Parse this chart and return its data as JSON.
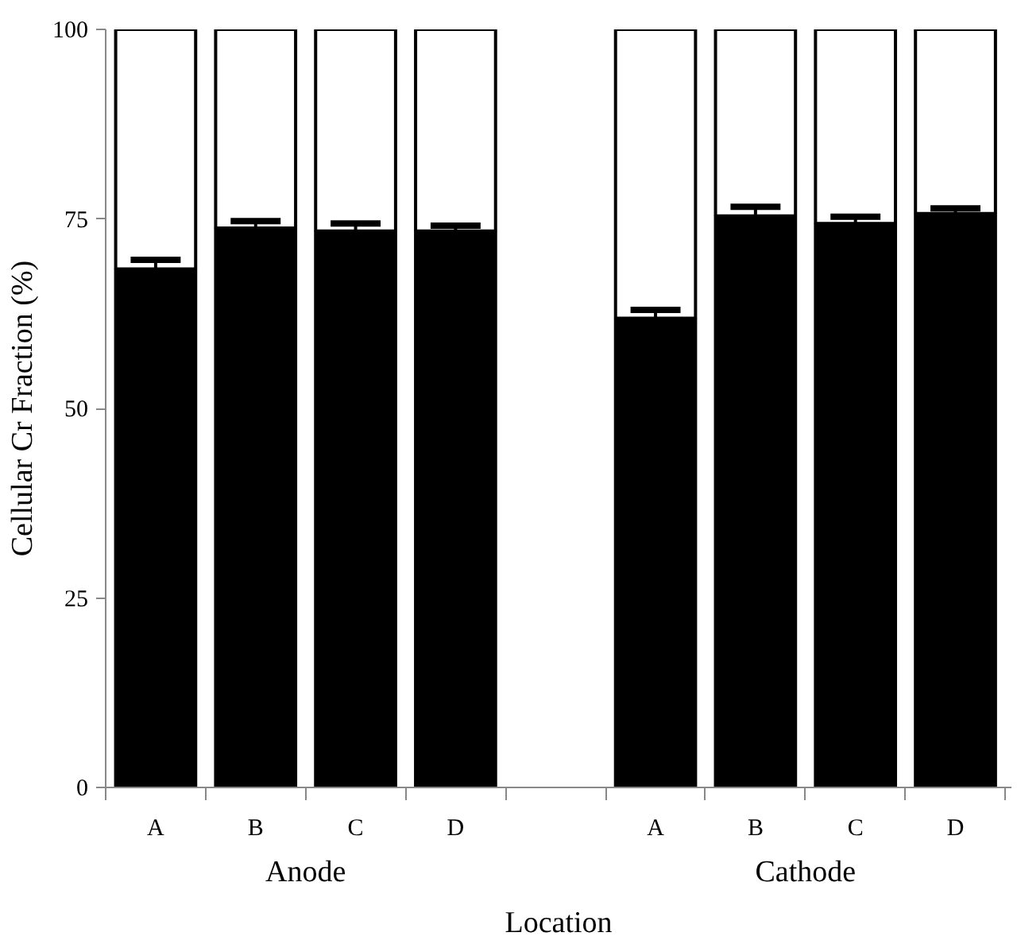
{
  "chart_data": {
    "type": "bar",
    "stacked": true,
    "xlabel": "Location",
    "ylabel": "Cellular Cr Fraction (%)",
    "categories": [
      "A",
      "B",
      "C",
      "D",
      null,
      "A",
      "B",
      "C",
      "D"
    ],
    "series": [
      {
        "color": "#000000",
        "values": [
          68.4,
          73.8,
          73.4,
          73.4,
          null,
          61.9,
          75.4,
          74.4,
          75.7
        ],
        "errors": [
          1.2,
          0.9,
          1.0,
          0.7,
          null,
          1.1,
          1.2,
          0.9,
          0.7
        ]
      },
      {
        "color": "#ffffff",
        "values": [
          31.6,
          26.2,
          26.6,
          26.6,
          null,
          38.1,
          24.6,
          25.6,
          24.3
        ]
      }
    ],
    "annotations": [
      "Anode",
      "Cathode"
    ],
    "ylim": [
      0,
      100
    ],
    "yticks": [
      0,
      25,
      50,
      75,
      100
    ],
    "grid": false
  }
}
